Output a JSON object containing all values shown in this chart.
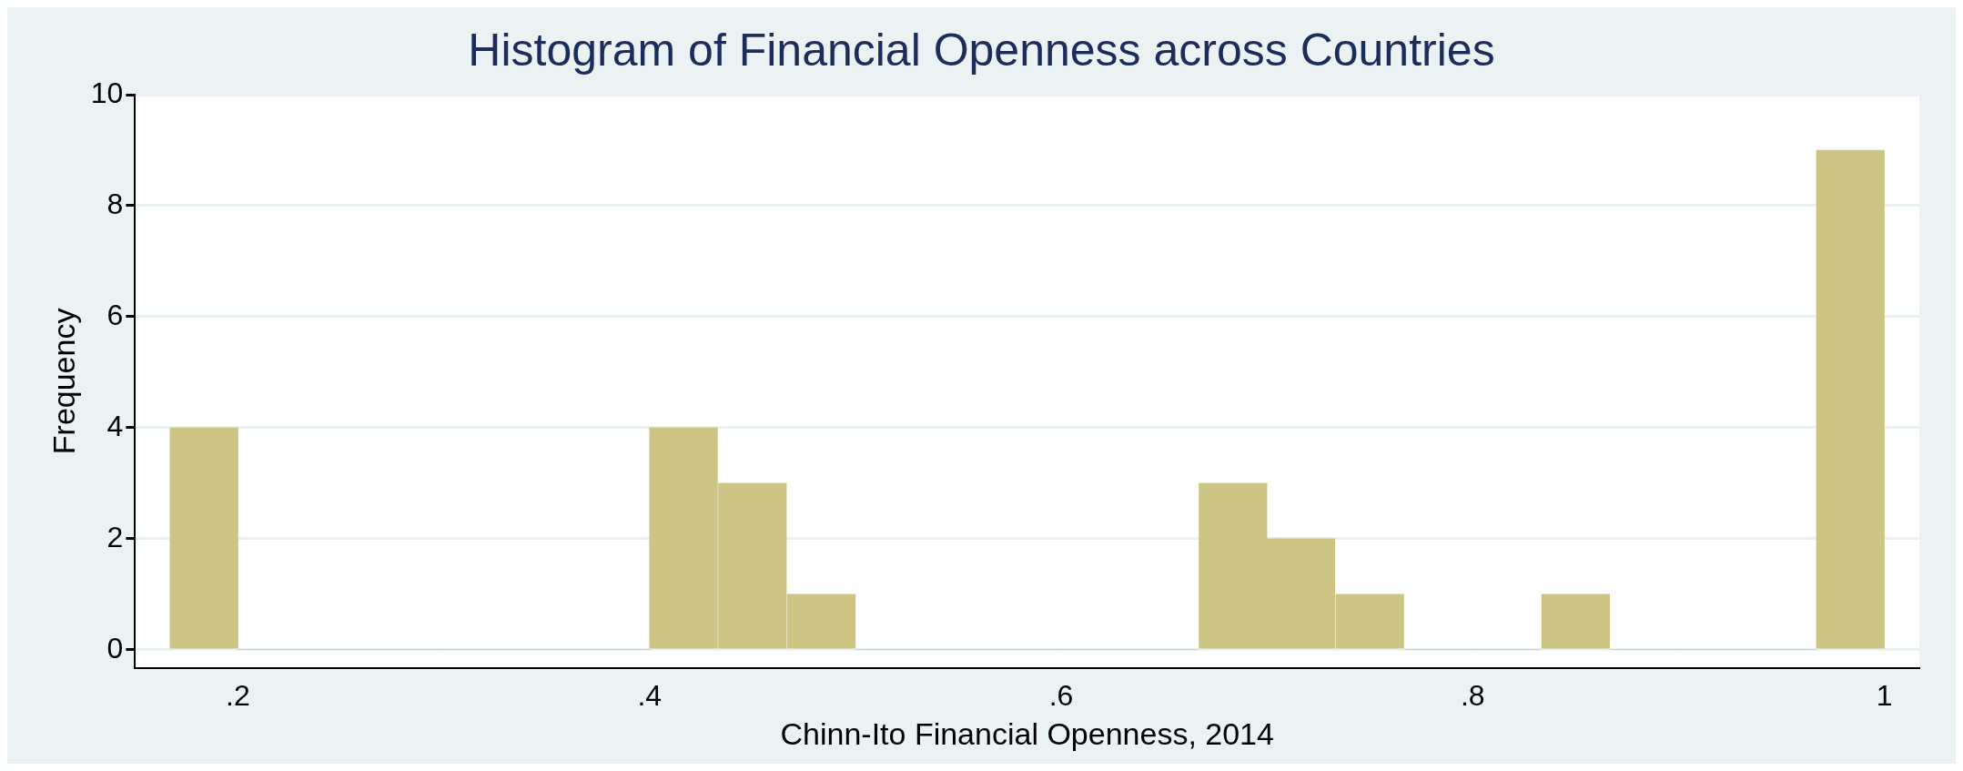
{
  "chart_data": {
    "type": "histogram",
    "title": "Histogram of Financial Openness across Countries",
    "xlabel": "Chinn-Ito Financial Openness, 2014",
    "ylabel": "Frequency",
    "bins": [
      0.167,
      0.2,
      0.233,
      0.267,
      0.3,
      0.333,
      0.367,
      0.4,
      0.433,
      0.467,
      0.5,
      0.533,
      0.567,
      0.6,
      0.633,
      0.667,
      0.7,
      0.733,
      0.767,
      0.8,
      0.833,
      0.867,
      0.9,
      0.933,
      0.967,
      1
    ],
    "values": [
      4,
      0,
      0,
      0,
      0,
      0,
      0,
      4,
      3,
      1,
      0,
      0,
      0,
      0,
      0,
      3,
      2,
      1,
      0,
      0,
      1,
      0,
      0,
      0,
      9
    ],
    "color": "#cdc584",
    "xlim": [
      0.15,
      1.017
    ],
    "xticks": [
      {
        "value": 0.2,
        "label": ".2"
      },
      {
        "value": 0.4,
        "label": ".4"
      },
      {
        "value": 0.6,
        "label": ".6"
      },
      {
        "value": 0.8,
        "label": ".8"
      },
      1
    ],
    "ylim": [
      -0.33,
      10
    ],
    "yticks": [
      0,
      2,
      4,
      6,
      8,
      10
    ],
    "grid": "y",
    "legend": false
  }
}
